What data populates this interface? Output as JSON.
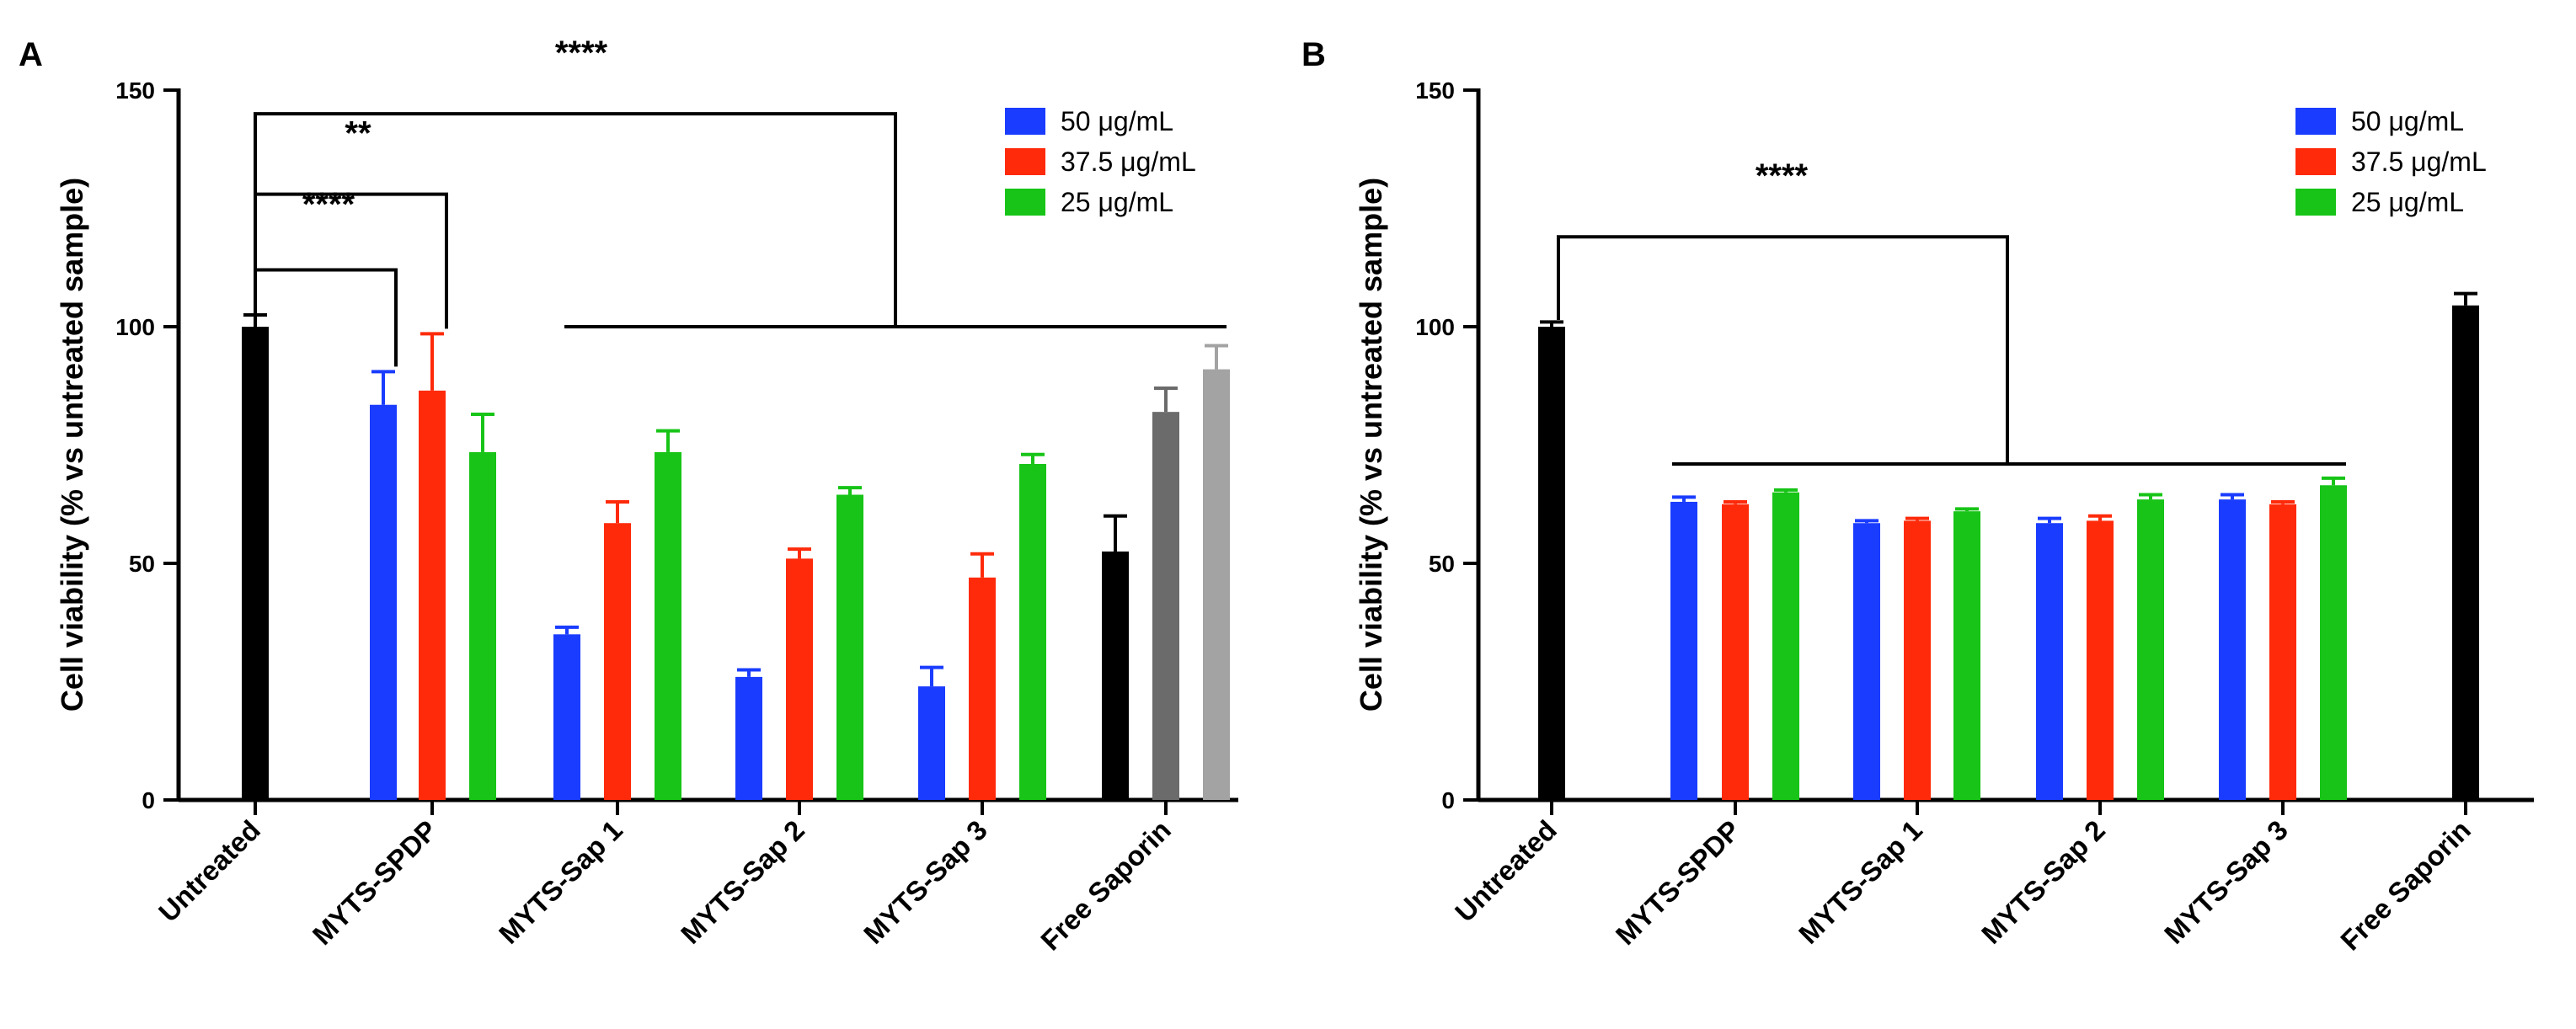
{
  "figure": {
    "colors": {
      "blue": "#1a3cff",
      "red": "#ff2a0a",
      "green": "#17c417",
      "black": "#000000",
      "dark_gray": "#6b6b6b",
      "light_gray": "#a3a3a3"
    }
  },
  "chart_data": [
    {
      "panel_label": "A",
      "type": "bar",
      "ylabel": "Cell viability (% vs untreated sample)",
      "ylim": [
        0,
        150
      ],
      "yticks": [
        0,
        50,
        100,
        150
      ],
      "grid": false,
      "legend_position": "top-right",
      "legend": [
        {
          "label": "50 μg/mL",
          "color": "#1a3cff"
        },
        {
          "label": "37.5 μg/mL",
          "color": "#ff2a0a"
        },
        {
          "label": "25 μg/mL",
          "color": "#17c417"
        }
      ],
      "categories": [
        "Untreated",
        "MYTS-SPDP",
        "MYTS-Sap 1",
        "MYTS-Sap 2",
        "MYTS-Sap 3",
        "Free Saporin"
      ],
      "bars": [
        {
          "category": "Untreated",
          "value": 100,
          "error": 2.5,
          "color": "#000000"
        },
        {
          "category": "MYTS-SPDP",
          "value": 83.5,
          "error": 7,
          "color": "#1a3cff"
        },
        {
          "category": "MYTS-SPDP",
          "value": 86.5,
          "error": 12,
          "color": "#ff2a0a"
        },
        {
          "category": "MYTS-SPDP",
          "value": 73.5,
          "error": 8,
          "color": "#17c417"
        },
        {
          "category": "MYTS-Sap 1",
          "value": 35,
          "error": 1.5,
          "color": "#1a3cff"
        },
        {
          "category": "MYTS-Sap 1",
          "value": 58.5,
          "error": 4.5,
          "color": "#ff2a0a"
        },
        {
          "category": "MYTS-Sap 1",
          "value": 73.5,
          "error": 4.5,
          "color": "#17c417"
        },
        {
          "category": "MYTS-Sap 2",
          "value": 26,
          "error": 1.5,
          "color": "#1a3cff"
        },
        {
          "category": "MYTS-Sap 2",
          "value": 51,
          "error": 2,
          "color": "#ff2a0a"
        },
        {
          "category": "MYTS-Sap 2",
          "value": 64.5,
          "error": 1.5,
          "color": "#17c417"
        },
        {
          "category": "MYTS-Sap 3",
          "value": 24,
          "error": 4,
          "color": "#1a3cff"
        },
        {
          "category": "MYTS-Sap 3",
          "value": 47,
          "error": 5,
          "color": "#ff2a0a"
        },
        {
          "category": "MYTS-Sap 3",
          "value": 71,
          "error": 2,
          "color": "#17c417"
        },
        {
          "category": "Free Saporin",
          "value": 52.5,
          "error": 7.5,
          "color": "#000000"
        },
        {
          "category": "Free Saporin",
          "value": 82,
          "error": 5,
          "color": "#6b6b6b"
        },
        {
          "category": "Free Saporin",
          "value": 91,
          "error": 5,
          "color": "#a3a3a3"
        }
      ],
      "annotations": [
        "****",
        "**",
        "****"
      ]
    },
    {
      "panel_label": "B",
      "type": "bar",
      "ylabel": "Cell viability (% vs untreated sample)",
      "ylim": [
        0,
        150
      ],
      "yticks": [
        0,
        50,
        100,
        150
      ],
      "grid": false,
      "legend_position": "top-right",
      "legend": [
        {
          "label": "50 μg/mL",
          "color": "#1a3cff"
        },
        {
          "label": "37.5 μg/mL",
          "color": "#ff2a0a"
        },
        {
          "label": "25 μg/mL",
          "color": "#17c417"
        }
      ],
      "categories": [
        "Untreated",
        "MYTS-SPDP",
        "MYTS-Sap 1",
        "MYTS-Sap 2",
        "MYTS-Sap 3",
        "Free Saporin"
      ],
      "bars": [
        {
          "category": "Untreated",
          "value": 100,
          "error": 1,
          "color": "#000000"
        },
        {
          "category": "MYTS-SPDP",
          "value": 63,
          "error": 1,
          "color": "#1a3cff"
        },
        {
          "category": "MYTS-SPDP",
          "value": 62.5,
          "error": 0.5,
          "color": "#ff2a0a"
        },
        {
          "category": "MYTS-SPDP",
          "value": 65,
          "error": 0.5,
          "color": "#17c417"
        },
        {
          "category": "MYTS-Sap 1",
          "value": 58.5,
          "error": 0.5,
          "color": "#1a3cff"
        },
        {
          "category": "MYTS-Sap 1",
          "value": 59,
          "error": 0.5,
          "color": "#ff2a0a"
        },
        {
          "category": "MYTS-Sap 1",
          "value": 61,
          "error": 0.5,
          "color": "#17c417"
        },
        {
          "category": "MYTS-Sap 2",
          "value": 58.5,
          "error": 1,
          "color": "#1a3cff"
        },
        {
          "category": "MYTS-Sap 2",
          "value": 59,
          "error": 1,
          "color": "#ff2a0a"
        },
        {
          "category": "MYTS-Sap 2",
          "value": 63.5,
          "error": 1,
          "color": "#17c417"
        },
        {
          "category": "MYTS-Sap 3",
          "value": 63.5,
          "error": 1,
          "color": "#1a3cff"
        },
        {
          "category": "MYTS-Sap 3",
          "value": 62.5,
          "error": 0.5,
          "color": "#ff2a0a"
        },
        {
          "category": "MYTS-Sap 3",
          "value": 66.5,
          "error": 1.5,
          "color": "#17c417"
        },
        {
          "category": "Free Saporin",
          "value": 104.5,
          "error": 2.5,
          "color": "#000000"
        }
      ],
      "annotations": [
        "****"
      ]
    }
  ]
}
